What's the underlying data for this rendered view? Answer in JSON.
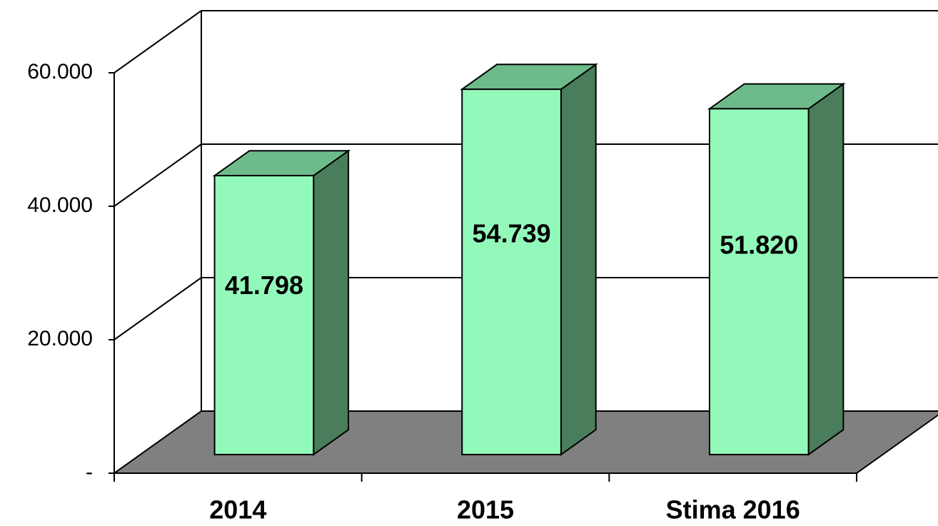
{
  "chart_data": {
    "type": "bar3d",
    "categories": [
      "2014",
      "2015",
      "Stima 2016"
    ],
    "values": [
      41798,
      54739,
      51820
    ],
    "value_labels": [
      "41.798",
      "54.739",
      "51.820"
    ],
    "colors": {
      "front": "#93f9bb",
      "top": "#6dbb8b",
      "side": "#4a7d5c",
      "floor": "#808080"
    },
    "ylim": [
      0,
      60000
    ],
    "yticks": [
      {
        "value": 0,
        "label": "-"
      },
      {
        "value": 20000,
        "label": "20.000"
      },
      {
        "value": 40000,
        "label": "40.000"
      },
      {
        "value": 60000,
        "label": "60.000"
      }
    ],
    "grid": true
  }
}
